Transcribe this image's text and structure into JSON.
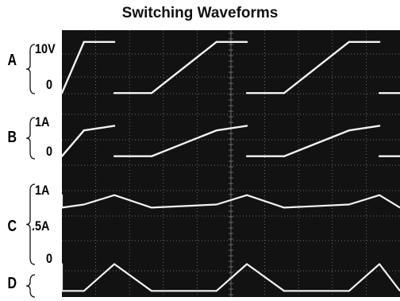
{
  "title": "Switching Waveforms",
  "channels": [
    {
      "letter": "A",
      "ticks": [
        "10V",
        "0"
      ]
    },
    {
      "letter": "B",
      "ticks": [
        "1A",
        "0"
      ]
    },
    {
      "letter": "C",
      "ticks": [
        "1A",
        ".5A",
        "0"
      ]
    },
    {
      "letter": "D",
      "ticks": []
    }
  ],
  "colors": {
    "screen": "#121212",
    "graticule": "#8a8a8a",
    "trace": "#f2f2f2"
  },
  "chart_data": {
    "type": "line",
    "title": "Switching Waveforms",
    "x_divisions": 10,
    "period_divisions": 4,
    "grid": true,
    "series": [
      {
        "name": "A",
        "unit": "V",
        "y_ticks": [
          "10V",
          "0"
        ],
        "ylim": [
          -2,
          12
        ],
        "description": "square wave, high 10V for ~30% of period, low 0",
        "points": [
          {
            "x": 0.3,
            "y": 10
          },
          {
            "x": 1.2,
            "y": 10
          },
          {
            "x": 1.2,
            "y": 0
          },
          {
            "x": 2.3,
            "y": 0
          }
        ],
        "repeat": true
      },
      {
        "name": "B",
        "unit": "A",
        "y_ticks": [
          "1A",
          "0"
        ],
        "ylim": [
          -0.4,
          1.3
        ],
        "points": [
          {
            "x": 0.3,
            "y": 0.85
          },
          {
            "x": 1.2,
            "y": 1.0
          },
          {
            "x": 1.2,
            "y": 0
          },
          {
            "x": 2.3,
            "y": 0
          }
        ],
        "repeat": true
      },
      {
        "name": "C",
        "unit": "A",
        "y_ticks": [
          "1A",
          ".5A",
          "0"
        ],
        "ylim": [
          -0.2,
          1.2
        ],
        "points": [
          {
            "x": 0.3,
            "y": 0.85
          },
          {
            "x": 1.2,
            "y": 1.0
          },
          {
            "x": 2.3,
            "y": 0.8
          }
        ],
        "repeat": true
      },
      {
        "name": "D",
        "unit": "",
        "y_ticks": [],
        "ylim": [
          0,
          1.2
        ],
        "points": [
          {
            "x": 0.3,
            "y": 0.1
          },
          {
            "x": 1.2,
            "y": 1.0
          },
          {
            "x": 2.3,
            "y": 0.1
          }
        ],
        "repeat": true
      }
    ]
  }
}
